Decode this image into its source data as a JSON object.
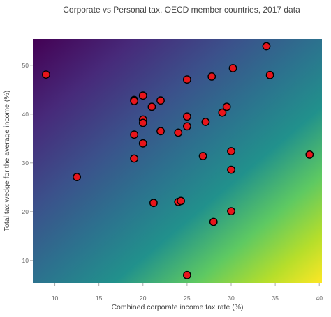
{
  "chart_data": {
    "type": "scatter",
    "title": "Corporate vs Personal tax, OECD member countries, 2017 data",
    "xlabel": "Combined corporate income tax rate (%)",
    "ylabel": "Total tax wedge for the average income (%)",
    "xlim": [
      7.5,
      40.3
    ],
    "ylim": [
      5.4,
      55.4
    ],
    "xticks": [
      10,
      15,
      20,
      25,
      30,
      35,
      40
    ],
    "yticks": [
      10,
      20,
      30,
      40,
      50
    ],
    "background": "viridis gradient, dark purple at top-left to yellow at bottom-right",
    "grid": false,
    "legend": "none",
    "marker_color": "#e8151b",
    "marker_edge_color": "#000000",
    "points": [
      {
        "x": 9.0,
        "y": 48.1
      },
      {
        "x": 12.5,
        "y": 27.1
      },
      {
        "x": 19.0,
        "y": 42.9
      },
      {
        "x": 19.0,
        "y": 42.7
      },
      {
        "x": 19.0,
        "y": 35.8
      },
      {
        "x": 19.0,
        "y": 30.9
      },
      {
        "x": 20.0,
        "y": 43.8
      },
      {
        "x": 20.0,
        "y": 38.9
      },
      {
        "x": 20.0,
        "y": 38.2
      },
      {
        "x": 20.0,
        "y": 34.0
      },
      {
        "x": 21.0,
        "y": 41.5
      },
      {
        "x": 21.2,
        "y": 21.8
      },
      {
        "x": 22.0,
        "y": 42.8
      },
      {
        "x": 22.0,
        "y": 36.5
      },
      {
        "x": 24.0,
        "y": 36.2
      },
      {
        "x": 24.0,
        "y": 22.0
      },
      {
        "x": 24.3,
        "y": 22.2
      },
      {
        "x": 25.0,
        "y": 47.1
      },
      {
        "x": 25.0,
        "y": 39.5
      },
      {
        "x": 25.0,
        "y": 37.5
      },
      {
        "x": 25.0,
        "y": 7.0
      },
      {
        "x": 26.8,
        "y": 31.4
      },
      {
        "x": 27.1,
        "y": 38.4
      },
      {
        "x": 27.8,
        "y": 47.7
      },
      {
        "x": 28.0,
        "y": 17.9
      },
      {
        "x": 29.0,
        "y": 40.3
      },
      {
        "x": 29.5,
        "y": 41.5
      },
      {
        "x": 30.0,
        "y": 32.4
      },
      {
        "x": 30.0,
        "y": 28.6
      },
      {
        "x": 30.0,
        "y": 20.1
      },
      {
        "x": 30.2,
        "y": 49.4
      },
      {
        "x": 34.0,
        "y": 53.9
      },
      {
        "x": 34.4,
        "y": 48.0
      },
      {
        "x": 38.9,
        "y": 31.7
      }
    ]
  }
}
